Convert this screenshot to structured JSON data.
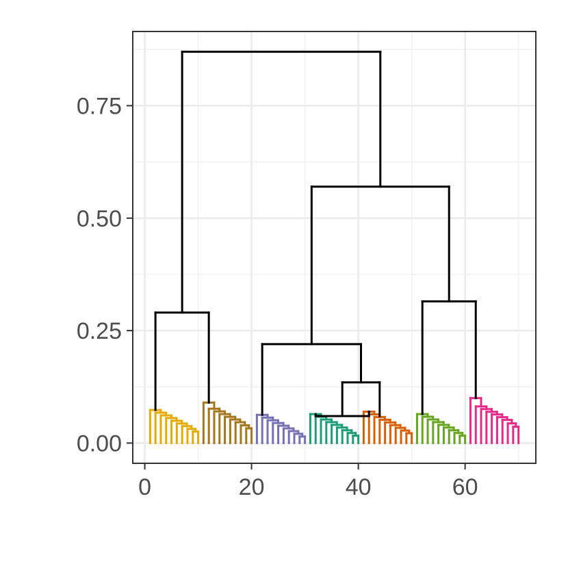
{
  "chart_data": {
    "type": "dendrogram",
    "title": "",
    "xlabel": "",
    "ylabel": "",
    "xlim": [
      -2.25,
      73.25
    ],
    "ylim": [
      -0.045,
      0.915
    ],
    "x_ticks": [
      0,
      20,
      40,
      60
    ],
    "x_tick_labels": [
      "0",
      "20",
      "40",
      "60"
    ],
    "y_ticks": [
      0,
      0.25,
      0.5,
      0.75
    ],
    "y_tick_labels": [
      "0.00",
      "0.25",
      "0.50",
      "0.75"
    ],
    "grid": true,
    "leaf_count": 70,
    "clusters": [
      {
        "color": "#E6AB02",
        "leaves": [
          1,
          10
        ],
        "height": 0.07
      },
      {
        "color": "#A6761D",
        "leaves": [
          11,
          20
        ],
        "height": 0.09
      },
      {
        "color": "#7570B3",
        "leaves": [
          21,
          30
        ],
        "height": 0.04
      },
      {
        "color": "#1B9E77",
        "leaves": [
          31,
          40
        ],
        "height": 0.045
      },
      {
        "color": "#D95F02",
        "leaves": [
          41,
          50
        ],
        "height": 0.06
      },
      {
        "color": "#66A61E",
        "leaves": [
          51,
          60
        ],
        "height": 0.045
      },
      {
        "color": "#E7298A",
        "leaves": [
          61,
          70
        ],
        "height": 0.1
      }
    ],
    "merges": [
      {
        "left": "cluster-1",
        "right": "cluster-2",
        "height": 0.29
      },
      {
        "left": "cluster-3",
        "right": "cluster-4",
        "height": 0.06
      },
      {
        "left": "cluster-5",
        "right": "cluster-6",
        "height": 0.06
      },
      {
        "left": "cluster-4-5",
        "right": "cluster-6",
        "height": 0.135
      },
      {
        "left": "cluster-3",
        "right": "cluster-4-5-6",
        "height": 0.22
      },
      {
        "left": "cluster-6",
        "right": "cluster-7",
        "height": 0.315
      },
      {
        "left": "cluster-3-4-5",
        "right": "cluster-6-7",
        "height": 0.57
      },
      {
        "left": "cluster-1-2",
        "right": "cluster-3-7",
        "height": 0.87
      }
    ]
  }
}
